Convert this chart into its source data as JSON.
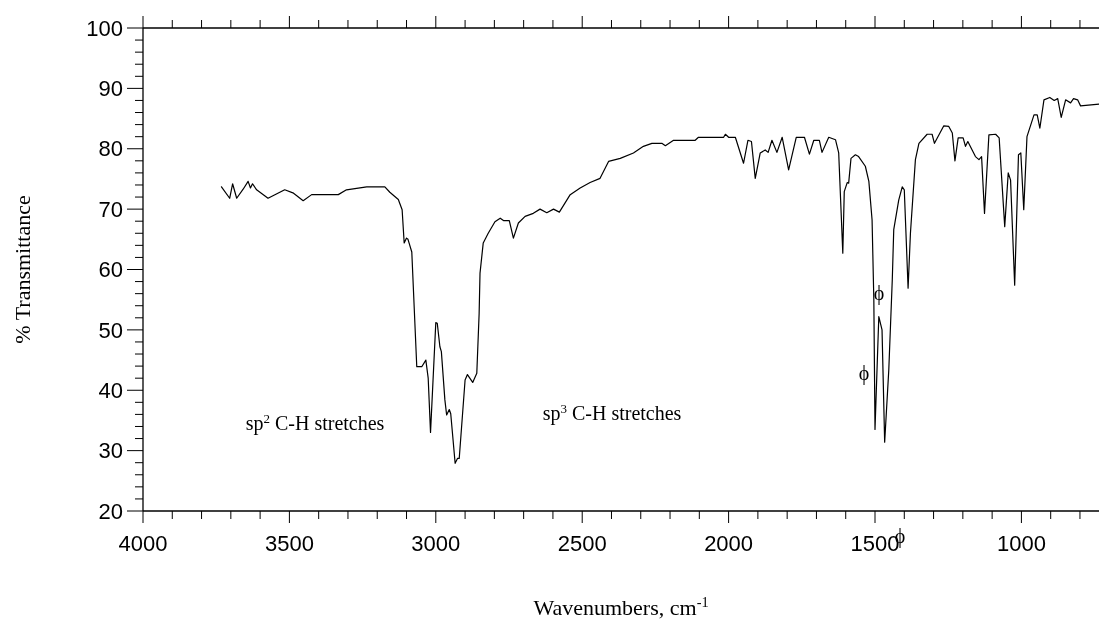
{
  "chart_data": {
    "type": "line",
    "xlabel": "Wavenumbers, cm$^{-1}$",
    "ylabel": "% Transmittance",
    "xlim": [
      4000,
      735
    ],
    "ylim": [
      20,
      100
    ],
    "xticks": [
      4000,
      {
        "value": 3900,
        "label": null
      },
      {
        "value": 3800,
        "label": null
      },
      {
        "value": 3700,
        "label": null
      },
      {
        "value": 3600,
        "label": null
      },
      3500,
      {
        "value": 3400,
        "label": null
      },
      {
        "value": 3300,
        "label": null
      },
      {
        "value": 3200,
        "label": null
      },
      {
        "value": 3100,
        "label": null
      },
      3000,
      {
        "value": 2900,
        "label": null
      },
      {
        "value": 2800,
        "label": null
      },
      {
        "value": 2700,
        "label": null
      },
      {
        "value": 2600,
        "label": null
      },
      2500,
      {
        "value": 2400,
        "label": null
      },
      {
        "value": 2300,
        "label": null
      },
      {
        "value": 2200,
        "label": null
      },
      {
        "value": 2100,
        "label": null
      },
      2000,
      {
        "value": 1900,
        "label": null
      },
      {
        "value": 1800,
        "label": null
      },
      {
        "value": 1700,
        "label": null
      },
      {
        "value": 1600,
        "label": null
      },
      1500,
      {
        "value": 1400,
        "label": null
      },
      {
        "value": 1300,
        "label": null
      },
      {
        "value": 1200,
        "label": null
      },
      {
        "value": 1100,
        "label": null
      },
      1000,
      {
        "value": 900,
        "label": null
      },
      {
        "value": 800,
        "label": null
      }
    ],
    "yticks": [
      20,
      {
        "value": 22,
        "label": null
      },
      {
        "value": 24,
        "label": null
      },
      {
        "value": 26,
        "label": null
      },
      {
        "value": 28,
        "label": null
      },
      30,
      {
        "value": 32,
        "label": null
      },
      {
        "value": 34,
        "label": null
      },
      {
        "value": 36,
        "label": null
      },
      {
        "value": 38,
        "label": null
      },
      40,
      {
        "value": 42,
        "label": null
      },
      {
        "value": 44,
        "label": null
      },
      {
        "value": 46,
        "label": null
      },
      {
        "value": 48,
        "label": null
      },
      50,
      {
        "value": 52,
        "label": null
      },
      {
        "value": 54,
        "label": null
      },
      {
        "value": 56,
        "label": null
      },
      {
        "value": 58,
        "label": null
      },
      60,
      {
        "value": 62,
        "label": null
      },
      {
        "value": 64,
        "label": null
      },
      {
        "value": 66,
        "label": null
      },
      {
        "value": 68,
        "label": null
      },
      70,
      {
        "value": 72,
        "label": null
      },
      {
        "value": 74,
        "label": null
      },
      {
        "value": 76,
        "label": null
      },
      {
        "value": 78,
        "label": null
      },
      80,
      {
        "value": 82,
        "label": null
      },
      {
        "value": 84,
        "label": null
      },
      {
        "value": 86,
        "label": null
      },
      {
        "value": 88,
        "label": null
      },
      90,
      {
        "value": 92,
        "label": null
      },
      {
        "value": 94,
        "label": null
      },
      {
        "value": 96,
        "label": null
      },
      {
        "value": 98,
        "label": null
      },
      100
    ],
    "grid": false,
    "marker": "none",
    "line_style": "solid",
    "series": [
      {
        "color": "#000000",
        "x": [
          3732,
          3704,
          3694,
          3680,
          3658,
          3641,
          3633,
          3626,
          3612,
          3573,
          3516,
          3488,
          3453,
          3424,
          3333,
          3305,
          3236,
          3174,
          3157,
          3128,
          3115,
          3108,
          3100,
          3095,
          3082,
          3065,
          3048,
          3034,
          3026,
          3018,
          3000,
          2995,
          2986,
          2981,
          2969,
          2963,
          2954,
          2949,
          2934,
          2926,
          2920,
          2900,
          2892,
          2874,
          2860,
          2852,
          2849,
          2838,
          2821,
          2798,
          2780,
          2769,
          2749,
          2735,
          2718,
          2695,
          2667,
          2644,
          2621,
          2598,
          2578,
          2541,
          2507,
          2473,
          2439,
          2410,
          2370,
          2325,
          2291,
          2262,
          2228,
          2216,
          2188,
          2114,
          2103,
          2017,
          2011,
          2000,
          1977,
          1949,
          1934,
          1922,
          1909,
          1892,
          1875,
          1865,
          1852,
          1835,
          1817,
          1795,
          1769,
          1741,
          1724,
          1709,
          1690,
          1681,
          1658,
          1635,
          1624,
          1610,
          1605,
          1595,
          1590,
          1582,
          1567,
          1556,
          1533,
          1521,
          1510,
          1504,
          1500,
          1487,
          1476,
          1467,
          1453,
          1441,
          1436,
          1419,
          1407,
          1400,
          1387,
          1379,
          1362,
          1350,
          1322,
          1305,
          1297,
          1265,
          1248,
          1236,
          1227,
          1216,
          1199,
          1191,
          1183,
          1157,
          1145,
          1136,
          1126,
          1111,
          1088,
          1076,
          1057,
          1045,
          1037,
          1023,
          1010,
          1002,
          992,
          981,
          957,
          946,
          937,
          923,
          903,
          888,
          876,
          864,
          849,
          832,
          822,
          808,
          798,
          735
        ],
        "values": [
          73.7,
          71.8,
          74.2,
          71.8,
          73.3,
          74.6,
          73.5,
          74.2,
          73.2,
          71.8,
          73.2,
          72.7,
          71.4,
          72.4,
          72.4,
          73.2,
          73.7,
          73.7,
          72.8,
          71.6,
          69.9,
          64.4,
          65.2,
          65.0,
          62.9,
          43.9,
          43.9,
          45.0,
          42.0,
          33.0,
          51.2,
          51.1,
          47.2,
          46.4,
          38.4,
          35.9,
          36.8,
          36.1,
          27.9,
          28.7,
          28.7,
          41.7,
          42.6,
          41.3,
          42.8,
          52.7,
          59.4,
          64.4,
          66.0,
          67.9,
          68.5,
          68.1,
          68.1,
          65.2,
          67.7,
          68.8,
          69.3,
          70.0,
          69.4,
          70.0,
          69.5,
          72.4,
          73.5,
          74.4,
          75.1,
          77.9,
          78.4,
          79.3,
          80.4,
          80.9,
          80.9,
          80.5,
          81.4,
          81.4,
          81.9,
          81.9,
          82.4,
          81.9,
          81.9,
          77.6,
          81.4,
          81.2,
          75.1,
          79.3,
          79.8,
          79.4,
          81.4,
          79.4,
          81.9,
          76.5,
          81.9,
          81.9,
          79.1,
          81.4,
          81.4,
          79.4,
          81.9,
          81.5,
          79.3,
          62.7,
          72.9,
          74.4,
          74.3,
          78.4,
          79.0,
          78.7,
          77.1,
          74.6,
          68.2,
          54.9,
          33.5,
          52.2,
          50.0,
          31.4,
          43.3,
          58.3,
          66.6,
          71.5,
          73.7,
          73.2,
          56.9,
          66.0,
          78.2,
          80.9,
          82.4,
          82.4,
          80.9,
          83.8,
          83.7,
          82.6,
          78.0,
          81.8,
          81.8,
          80.4,
          81.2,
          78.7,
          78.2,
          78.7,
          69.3,
          82.3,
          82.4,
          81.8,
          67.1,
          76.0,
          74.8,
          57.4,
          79.0,
          79.3,
          69.9,
          82.0,
          85.6,
          85.6,
          83.4,
          88.1,
          88.5,
          88.0,
          88.3,
          85.2,
          88.1,
          87.6,
          88.3,
          88.1,
          87.1,
          87.4
        ]
      }
    ],
    "annotations": [
      "sp$^{2}$ C-H stretches",
      "sp$^{3}$ C-H stretches",
      "ϕ",
      "ϕ",
      "ϕ"
    ]
  }
}
